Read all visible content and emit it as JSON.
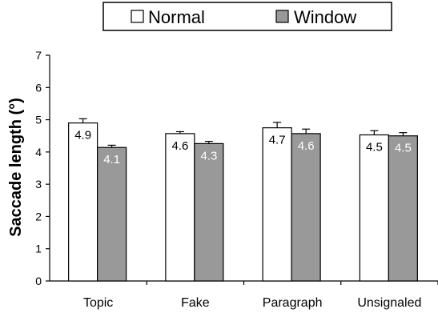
{
  "chart_data": {
    "type": "bar",
    "title": "",
    "xlabel": "",
    "ylabel": "Saccade length (°)",
    "ylim": [
      0,
      7
    ],
    "yticks": [
      "0",
      "1",
      "2",
      "3",
      "4",
      "5",
      "6",
      "7"
    ],
    "categories": [
      "Topic",
      "Fake",
      "Paragraph",
      "Unsignaled"
    ],
    "series": [
      {
        "name": "Normal",
        "values": [
          4.9,
          4.57,
          4.75,
          4.53
        ],
        "labels": [
          "4.9",
          "4.6",
          "4.7",
          "4.5"
        ],
        "error": [
          0.13,
          0.06,
          0.17,
          0.13
        ],
        "fill": "#ffffff",
        "label_color": "#000000"
      },
      {
        "name": "Window",
        "values": [
          4.14,
          4.26,
          4.57,
          4.5
        ],
        "labels": [
          "4.1",
          "4.3",
          "4.6",
          "4.5"
        ],
        "error": [
          0.07,
          0.07,
          0.14,
          0.1
        ],
        "fill": "#999999",
        "label_color": "#ffffff"
      }
    ],
    "legend_position": "top",
    "grid": false
  }
}
